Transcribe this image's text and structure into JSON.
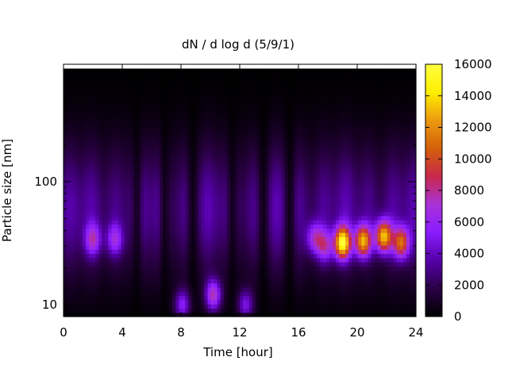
{
  "chart_data": {
    "type": "heatmap",
    "title": "dN / d log d (5/9/1)",
    "xlabel": "Time [hour]",
    "ylabel": "Particle size [nm]",
    "xlim": [
      0,
      24
    ],
    "ylim": [
      8,
      900
    ],
    "yscale": "log",
    "xticks": [
      0,
      4,
      8,
      12,
      16,
      20,
      24
    ],
    "xtick_labels": [
      "0",
      "4",
      "8",
      "12",
      "16",
      "20",
      "24"
    ],
    "yticks": [
      10,
      100
    ],
    "ytick_labels": [
      "10",
      "100"
    ],
    "colorbar": {
      "min": 0,
      "max": 16000,
      "ticks": [
        0,
        2000,
        4000,
        6000,
        8000,
        10000,
        12000,
        14000,
        16000
      ],
      "tick_labels": [
        "0",
        "2000",
        "4000",
        "6000",
        "8000",
        "10000",
        "12000",
        "14000",
        "16000"
      ],
      "colormap": [
        "#000000",
        "#2a0045",
        "#5500a8",
        "#8a1cff",
        "#a832d8",
        "#c8284a",
        "#d4600a",
        "#ec9a10",
        "#ffee00",
        "#ffff40"
      ]
    },
    "grid": false,
    "data_top_nm": 830,
    "background_level": 3000,
    "peak_nm": 60,
    "hot_spots": [
      {
        "time": 2.0,
        "size_nm": 34,
        "value": 6500
      },
      {
        "time": 3.5,
        "size_nm": 34,
        "value": 6000
      },
      {
        "time": 8.1,
        "size_nm": 10,
        "value": 6500
      },
      {
        "time": 10.2,
        "size_nm": 12,
        "value": 8500
      },
      {
        "time": 12.4,
        "size_nm": 10,
        "value": 6000
      },
      {
        "time": 17.1,
        "size_nm": 35,
        "value": 6500
      },
      {
        "time": 17.8,
        "size_nm": 30,
        "value": 6500
      },
      {
        "time": 19.0,
        "size_nm": 32,
        "value": 15000
      },
      {
        "time": 20.4,
        "size_nm": 33,
        "value": 12500
      },
      {
        "time": 21.8,
        "size_nm": 36,
        "value": 13000
      },
      {
        "time": 23.0,
        "size_nm": 32,
        "value": 10500
      }
    ],
    "low_columns": [
      {
        "time": 5.0,
        "value": 1200
      },
      {
        "time": 6.9,
        "value": 600
      },
      {
        "time": 8.8,
        "value": 500
      },
      {
        "time": 11.5,
        "value": 600
      },
      {
        "time": 13.6,
        "value": 700
      },
      {
        "time": 15.4,
        "value": 800
      }
    ]
  }
}
